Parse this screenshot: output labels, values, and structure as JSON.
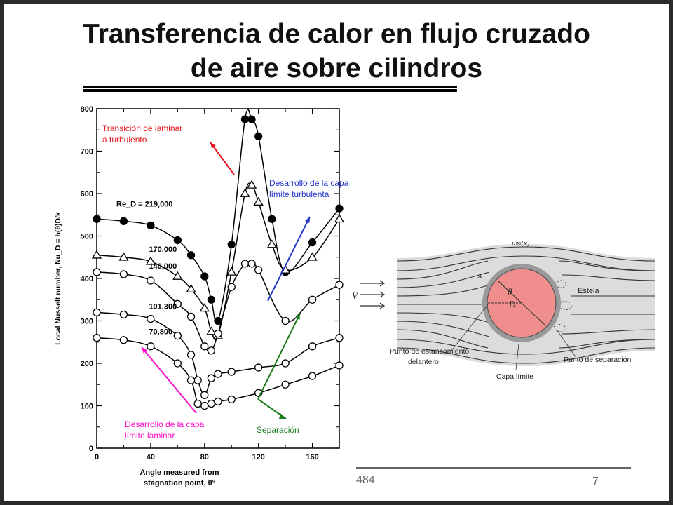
{
  "slide": {
    "title_line1": "Transferencia de calor en flujo cruzado",
    "title_line2": "de aire sobre cilindros",
    "footer_left": "484",
    "page_number": "7"
  },
  "chart_data": {
    "type": "line",
    "ylabel": "Local Nusselt number, Nu_D = h(θ)D/k",
    "xlabel_line1": "Angle measured from",
    "xlabel_line2": "stagnation point, θ°",
    "xlim": [
      0,
      180
    ],
    "ylim": [
      0,
      800
    ],
    "xticks": [
      0,
      40,
      80,
      120,
      160
    ],
    "yticks": [
      0,
      100,
      200,
      300,
      400,
      500,
      600,
      700,
      800
    ],
    "series": [
      {
        "name": "219,000",
        "label_prefix": "Re_D = ",
        "marker": "filled-circle",
        "x": [
          0,
          20,
          40,
          60,
          70,
          80,
          85,
          90,
          100,
          110,
          115,
          120,
          130,
          140,
          160,
          180
        ],
        "y": [
          540,
          535,
          525,
          490,
          455,
          405,
          350,
          300,
          480,
          775,
          775,
          735,
          540,
          415,
          485,
          565
        ]
      },
      {
        "name": "170,000",
        "marker": "triangle",
        "x": [
          0,
          20,
          40,
          60,
          70,
          80,
          85,
          90,
          100,
          110,
          115,
          120,
          130,
          140,
          160,
          180
        ],
        "y": [
          455,
          450,
          440,
          405,
          375,
          330,
          275,
          265,
          415,
          600,
          620,
          580,
          480,
          420,
          450,
          540
        ]
      },
      {
        "name": "140,000",
        "marker": "open-circle",
        "x": [
          0,
          20,
          40,
          60,
          70,
          80,
          85,
          90,
          100,
          110,
          115,
          120,
          140,
          160,
          180
        ],
        "y": [
          415,
          410,
          395,
          340,
          310,
          240,
          230,
          270,
          380,
          435,
          435,
          420,
          300,
          350,
          385
        ]
      },
      {
        "name": "101,300",
        "marker": "open-circle",
        "x": [
          0,
          20,
          40,
          60,
          70,
          75,
          80,
          85,
          90,
          100,
          120,
          140,
          160,
          180
        ],
        "y": [
          320,
          315,
          305,
          265,
          220,
          160,
          125,
          165,
          175,
          180,
          190,
          200,
          240,
          260
        ]
      },
      {
        "name": "70,800",
        "marker": "open-circle",
        "x": [
          0,
          20,
          40,
          60,
          70,
          75,
          80,
          85,
          90,
          100,
          120,
          140,
          160,
          180
        ],
        "y": [
          260,
          255,
          240,
          200,
          160,
          105,
          100,
          105,
          110,
          115,
          130,
          150,
          170,
          195
        ]
      }
    ],
    "annotations": [
      {
        "text_lines": [
          "Transición de laminar",
          "a turbulento"
        ],
        "color": "#e8101a"
      },
      {
        "text_lines": [
          "Desarrollo de la capa",
          "límite turbulenta"
        ],
        "color": "#2233cc"
      },
      {
        "text_lines": [
          "Desarrollo de la capa",
          "límite laminar"
        ],
        "color": "#ff11cc"
      },
      {
        "text_lines": [
          "Separación"
        ],
        "color": "#1a7a1a"
      }
    ]
  },
  "diagram": {
    "labels": {
      "velocity": "V",
      "x": "x",
      "theta": "θ",
      "diameter": "D",
      "u_infinity": "u∞(x)",
      "wake": "Estela",
      "stagnation_line1": "Punto de estancamiento",
      "stagnation_line2": "delantero",
      "separation": "Punto de separación",
      "boundary_layer": "Capa límite"
    },
    "colors": {
      "cylinder": "#f08e8e",
      "flow_bg": "#dcdcdc",
      "layer": "#9a9a9a"
    }
  }
}
